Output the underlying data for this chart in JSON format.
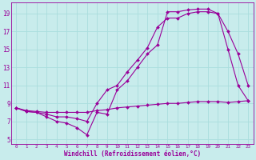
{
  "bg_color": "#c8ecec",
  "grid_color": "#aaaaaa",
  "line_color": "#990099",
  "xlabel": "Windchill (Refroidissement éolien,°C)",
  "ylabel_ticks": [
    5,
    7,
    9,
    11,
    13,
    15,
    17,
    19
  ],
  "xtick_labels": [
    "0",
    "1",
    "2",
    "3",
    "4",
    "5",
    "6",
    "7",
    "8",
    "9",
    "10",
    "11",
    "12",
    "13",
    "14",
    "15",
    "16",
    "17",
    "18",
    "19",
    "20",
    "21",
    "22",
    "23"
  ],
  "xlim": [
    -0.5,
    23.5
  ],
  "ylim": [
    4.5,
    20.2
  ],
  "line1_x": [
    0,
    1,
    2,
    3,
    4,
    5,
    6,
    7,
    8,
    9,
    10,
    11,
    12,
    13,
    14,
    15,
    16,
    17,
    18,
    19,
    20,
    21,
    22,
    23
  ],
  "line1_y": [
    8.5,
    8.1,
    8.0,
    7.5,
    7.0,
    6.8,
    6.3,
    5.5,
    8.0,
    7.8,
    10.5,
    11.5,
    13.0,
    14.5,
    15.5,
    19.2,
    19.2,
    19.4,
    19.5,
    19.5,
    19.0,
    15.0,
    11.0,
    9.3
  ],
  "line2_x": [
    0,
    1,
    2,
    3,
    4,
    5,
    6,
    7,
    8,
    9,
    10,
    11,
    12,
    13,
    14,
    15,
    16,
    17,
    18,
    19,
    20,
    21,
    22,
    23
  ],
  "line2_y": [
    8.5,
    8.1,
    8.0,
    7.8,
    7.5,
    7.5,
    7.3,
    7.0,
    9.0,
    10.5,
    11.0,
    12.5,
    13.8,
    15.2,
    17.5,
    18.5,
    18.5,
    19.0,
    19.2,
    19.2,
    19.0,
    17.0,
    14.5,
    11.0
  ],
  "line3_x": [
    0,
    1,
    2,
    3,
    4,
    5,
    6,
    7,
    8,
    9,
    10,
    11,
    12,
    13,
    14,
    15,
    16,
    17,
    18,
    19,
    20,
    21,
    22,
    23
  ],
  "line3_y": [
    8.5,
    8.2,
    8.1,
    8.0,
    8.0,
    8.0,
    8.0,
    8.0,
    8.2,
    8.3,
    8.5,
    8.6,
    8.7,
    8.8,
    8.9,
    9.0,
    9.0,
    9.1,
    9.2,
    9.2,
    9.2,
    9.1,
    9.2,
    9.3
  ]
}
